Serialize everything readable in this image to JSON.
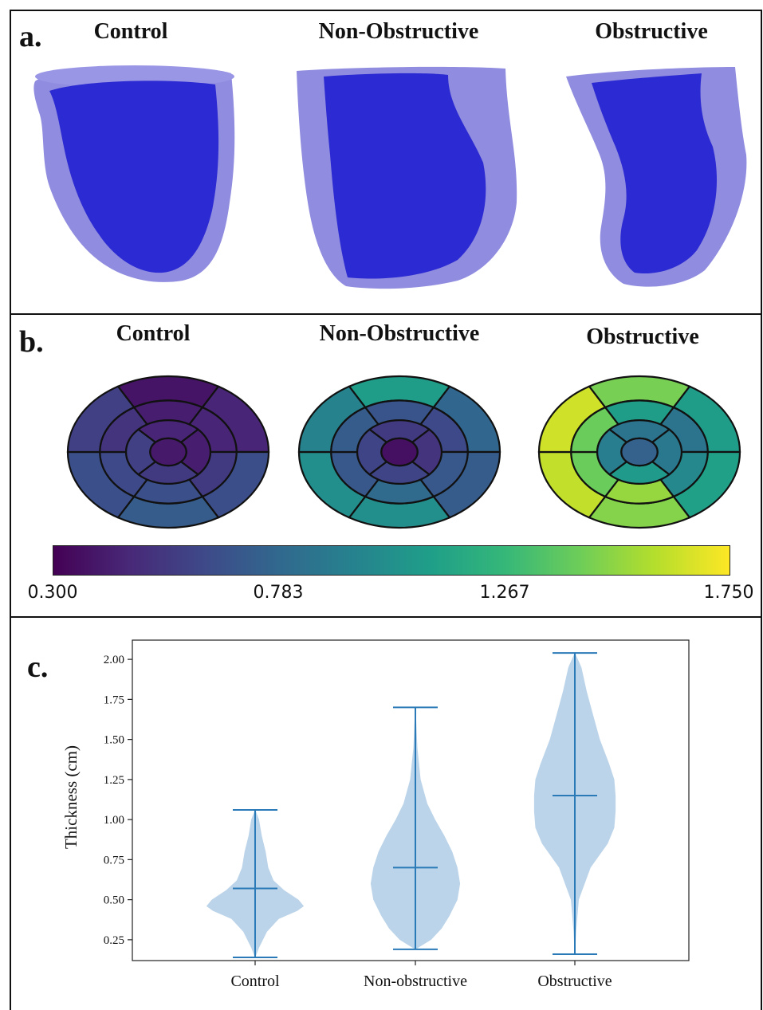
{
  "panel_a": {
    "label": "a.",
    "titles": [
      "Control",
      "Non-Obstructive",
      "Obstructive"
    ],
    "colors": {
      "outer": "#7e7ee0",
      "inner": "#2c28d4"
    }
  },
  "panel_b": {
    "label": "b.",
    "titles": [
      "Control",
      "Non-Obstructive",
      "Obstructive"
    ],
    "colorbar": {
      "min": 0.3,
      "max": 1.75,
      "ticks": [
        "0.300",
        "0.783",
        "1.267",
        "1.750"
      ],
      "colormap": "viridis"
    },
    "bullseyes": [
      {
        "name": "Control",
        "basal": [
          0.38,
          0.45,
          0.65,
          0.72,
          0.66,
          0.58
        ],
        "mid": [
          0.42,
          0.45,
          0.55,
          0.66,
          0.62,
          0.52
        ],
        "apical": [
          0.45,
          0.42,
          0.55,
          0.58
        ],
        "apex": 0.4
      },
      {
        "name": "Non-Obstructive",
        "basal": [
          1.1,
          0.78,
          0.72,
          1.02,
          1.02,
          0.95
        ],
        "mid": [
          0.68,
          0.62,
          0.7,
          0.8,
          0.7,
          0.72
        ],
        "apical": [
          0.55,
          0.52,
          0.6,
          0.6
        ],
        "apex": 0.36
      },
      {
        "name": "Obstructive",
        "basal": [
          1.45,
          1.1,
          1.12,
          1.48,
          1.62,
          1.65
        ],
        "mid": [
          1.1,
          0.85,
          0.98,
          1.52,
          1.42,
          1.42
        ],
        "apical": [
          0.85,
          0.88,
          1.08,
          0.92
        ],
        "apex": 0.75
      }
    ]
  },
  "chart_data": {
    "type": "violin",
    "label": "c.",
    "categories": [
      "Control",
      "Non-obstructive",
      "Obstructive"
    ],
    "ylabel": "Thickness (cm)",
    "xlabel": "",
    "ylim": [
      0.12,
      2.12
    ],
    "yticks": [
      "0.25",
      "0.50",
      "0.75",
      "1.00",
      "1.25",
      "1.50",
      "1.75",
      "2.00"
    ],
    "stats": [
      {
        "min": 0.14,
        "max": 1.06,
        "median": 0.57
      },
      {
        "min": 0.19,
        "max": 1.7,
        "median": 0.7
      },
      {
        "min": 0.16,
        "max": 2.04,
        "median": 1.15
      }
    ],
    "density_profiles": [
      [
        [
          0.14,
          0.002
        ],
        [
          0.2,
          0.03
        ],
        [
          0.3,
          0.09
        ],
        [
          0.38,
          0.18
        ],
        [
          0.43,
          0.32
        ],
        [
          0.46,
          0.37
        ],
        [
          0.5,
          0.33
        ],
        [
          0.56,
          0.22
        ],
        [
          0.62,
          0.14
        ],
        [
          0.7,
          0.1
        ],
        [
          0.8,
          0.08
        ],
        [
          0.9,
          0.05
        ],
        [
          1.0,
          0.03
        ],
        [
          1.06,
          0.002
        ]
      ],
      [
        [
          0.19,
          0.002
        ],
        [
          0.25,
          0.12
        ],
        [
          0.32,
          0.2
        ],
        [
          0.4,
          0.26
        ],
        [
          0.5,
          0.32
        ],
        [
          0.6,
          0.34
        ],
        [
          0.7,
          0.32
        ],
        [
          0.8,
          0.28
        ],
        [
          0.9,
          0.22
        ],
        [
          1.0,
          0.15
        ],
        [
          1.1,
          0.09
        ],
        [
          1.25,
          0.04
        ],
        [
          1.45,
          0.015
        ],
        [
          1.7,
          0.002
        ]
      ],
      [
        [
          0.16,
          0.002
        ],
        [
          0.3,
          0.01
        ],
        [
          0.5,
          0.03
        ],
        [
          0.7,
          0.12
        ],
        [
          0.85,
          0.25
        ],
        [
          0.95,
          0.3
        ],
        [
          1.05,
          0.31
        ],
        [
          1.15,
          0.31
        ],
        [
          1.25,
          0.3
        ],
        [
          1.35,
          0.26
        ],
        [
          1.5,
          0.19
        ],
        [
          1.65,
          0.14
        ],
        [
          1.8,
          0.09
        ],
        [
          1.95,
          0.05
        ],
        [
          2.04,
          0.002
        ]
      ]
    ],
    "colors": {
      "body": "#bcd4e9",
      "lines": "#2a7ab8"
    }
  }
}
